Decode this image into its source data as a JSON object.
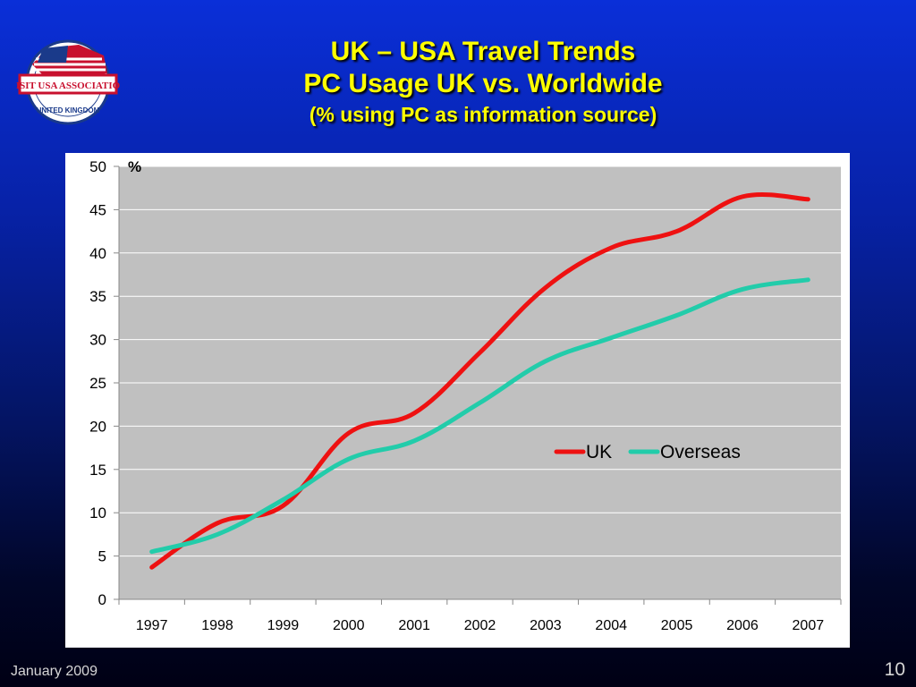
{
  "header": {
    "title_line1": "UK – USA Travel Trends",
    "title_line2": "PC Usage UK vs. Worldwide",
    "title_line3": "(% using PC as information source)"
  },
  "logo": {
    "name": "visit-usa-association-logo",
    "text": "VISIT USA ASSOCIATION",
    "subtext": "UNITED KINGDOM"
  },
  "footer": {
    "date": "January 2009",
    "page_number": "10"
  },
  "colors": {
    "title": "#ffff00",
    "plot_background": "#c0c0c0",
    "uk": "#ee1111",
    "overseas": "#22ccaa"
  },
  "chart_data": {
    "type": "line",
    "title": "",
    "xlabel": "",
    "ylabel": "",
    "y_unit_label": "%",
    "categories": [
      "1997",
      "1998",
      "1999",
      "2000",
      "2001",
      "2002",
      "2003",
      "2004",
      "2005",
      "2006",
      "2007"
    ],
    "ylim": [
      0,
      50
    ],
    "yticks": [
      0,
      5,
      10,
      15,
      20,
      25,
      30,
      35,
      40,
      45,
      50
    ],
    "grid": true,
    "legend_position": "center-right",
    "series": [
      {
        "name": "UK",
        "color": "#ee1111",
        "values": [
          3.7,
          8.8,
          10.8,
          19.2,
          21.5,
          28.5,
          36.0,
          40.6,
          42.5,
          46.5,
          46.2
        ]
      },
      {
        "name": "Overseas",
        "color": "#22ccaa",
        "values": [
          5.5,
          7.5,
          11.5,
          16.2,
          18.3,
          22.7,
          27.5,
          30.2,
          32.8,
          35.8,
          36.9
        ]
      }
    ]
  }
}
